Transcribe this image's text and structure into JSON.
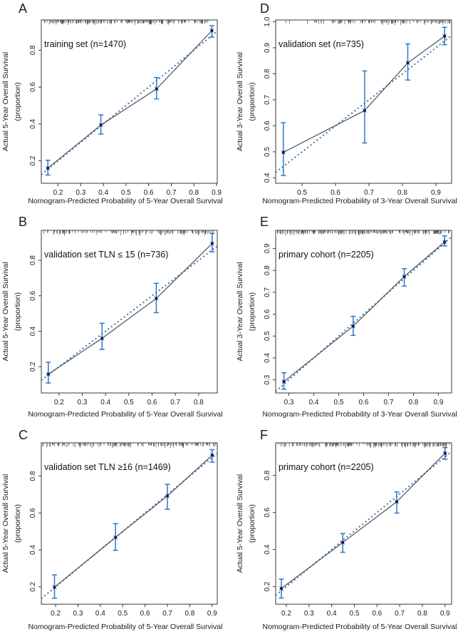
{
  "colors": {
    "frame": "#3a3a3a",
    "rug": "#4a4a4a",
    "tick_text": "#1a1a1a",
    "axis_label_text": "#1a1a1a",
    "annotation_text": "#111111",
    "error_bar": "#3176c5",
    "ideal_line": "#2c6fbf",
    "observed_line": "#4f4f4f",
    "marker_dot": "#16163f",
    "marker_cross": "#6868d8"
  },
  "chart_data": [
    {
      "panel_label": "A",
      "type": "scatter",
      "annotation": "training  set (n=1470)",
      "xlabel": "Nomogram-Predicted Probability of 5-Year Overall Survival",
      "ylabel_line1": "Actual 5-Year  Overall Survival",
      "ylabel_line2": "(proportion)",
      "xlim": [
        0.126,
        0.903
      ],
      "ylim": [
        0.078,
        0.964
      ],
      "xticks": [
        0.2,
        0.3,
        0.4,
        0.5,
        0.6,
        0.7,
        0.8,
        0.9
      ],
      "yticks": [
        0.2,
        0.4,
        0.6,
        0.8
      ],
      "ideal_line": true,
      "legend_position": "none",
      "grid": false,
      "points": [
        {
          "x": 0.155,
          "y": 0.16,
          "lo": 0.123,
          "hi": 0.203
        },
        {
          "x": 0.389,
          "y": 0.394,
          "lo": 0.345,
          "hi": 0.449
        },
        {
          "x": 0.635,
          "y": 0.59,
          "lo": 0.536,
          "hi": 0.652
        },
        {
          "x": 0.879,
          "y": 0.906,
          "lo": 0.871,
          "hi": 0.933
        }
      ],
      "rug": {
        "seed": 101,
        "count": 195,
        "min": 0.13,
        "max": 0.868,
        "skew": 1.0
      },
      "grid_position": {
        "row": 0,
        "col": 0
      }
    },
    {
      "panel_label": "D",
      "type": "scatter",
      "annotation": "validation set (n=735)",
      "xlabel": "Nomogram-Predicted Probability of 3-Year Overall Survival",
      "ylabel_line1": "Actual 3-Year  Overall Survival",
      "ylabel_line2": "(proportion)",
      "xlim": [
        0.421,
        0.947
      ],
      "ylim": [
        0.379,
        1.007
      ],
      "xticks": [
        0.5,
        0.6,
        0.7,
        0.8,
        0.9
      ],
      "yticks": [
        0.4,
        0.5,
        0.6,
        0.7,
        0.8,
        0.9,
        1.0
      ],
      "ideal_line": true,
      "legend_position": "none",
      "grid": false,
      "points": [
        {
          "x": 0.444,
          "y": 0.498,
          "lo": 0.409,
          "hi": 0.612
        },
        {
          "x": 0.687,
          "y": 0.659,
          "lo": 0.534,
          "hi": 0.811
        },
        {
          "x": 0.816,
          "y": 0.842,
          "lo": 0.776,
          "hi": 0.915
        },
        {
          "x": 0.926,
          "y": 0.945,
          "lo": 0.912,
          "hi": 0.979
        }
      ],
      "rug": {
        "seed": 104,
        "count": 105,
        "min": 0.425,
        "max": 0.944,
        "skew": 0.6
      },
      "grid_position": {
        "row": 0,
        "col": 1
      }
    },
    {
      "panel_label": "B",
      "type": "scatter",
      "annotation": "validation  set TLN ≤ 15 (n=736)",
      "xlabel": "Nomogram-Predicted Probability of 5-Year Overall Survival",
      "ylabel_line1": "Actual 5-Year  Overall Survival",
      "ylabel_line2": "(proportion)",
      "xlim": [
        0.124,
        0.88
      ],
      "ylim": [
        0.052,
        0.969
      ],
      "xticks": [
        0.2,
        0.3,
        0.4,
        0.5,
        0.6,
        0.7,
        0.8
      ],
      "yticks": [
        0.2,
        0.4,
        0.6,
        0.8
      ],
      "ideal_line": true,
      "legend_position": "none",
      "grid": false,
      "points": [
        {
          "x": 0.154,
          "y": 0.158,
          "lo": 0.108,
          "hi": 0.225
        },
        {
          "x": 0.385,
          "y": 0.36,
          "lo": 0.298,
          "hi": 0.445
        },
        {
          "x": 0.618,
          "y": 0.585,
          "lo": 0.505,
          "hi": 0.67
        },
        {
          "x": 0.858,
          "y": 0.895,
          "lo": 0.848,
          "hi": 0.952
        }
      ],
      "rug": {
        "seed": 102,
        "count": 125,
        "min": 0.128,
        "max": 0.862,
        "skew": 1.0
      },
      "grid_position": {
        "row": 1,
        "col": 0
      }
    },
    {
      "panel_label": "E",
      "type": "scatter",
      "annotation": "primary cohort (n=2205)",
      "xlabel": "Nomogram-Predicted Probability of 3-Year Overall Survival",
      "ylabel_line1": "Actual 3-Year  Overall Survival",
      "ylabel_line2": "(proportion)",
      "xlim": [
        0.247,
        0.953
      ],
      "ylim": [
        0.24,
        0.983
      ],
      "xticks": [
        0.3,
        0.4,
        0.5,
        0.6,
        0.7,
        0.8,
        0.9
      ],
      "yticks": [
        0.3,
        0.4,
        0.5,
        0.6,
        0.7,
        0.8,
        0.9
      ],
      "ideal_line": true,
      "legend_position": "none",
      "grid": false,
      "points": [
        {
          "x": 0.28,
          "y": 0.292,
          "lo": 0.257,
          "hi": 0.332
        },
        {
          "x": 0.558,
          "y": 0.545,
          "lo": 0.503,
          "hi": 0.59
        },
        {
          "x": 0.763,
          "y": 0.772,
          "lo": 0.728,
          "hi": 0.808
        },
        {
          "x": 0.925,
          "y": 0.93,
          "lo": 0.912,
          "hi": 0.958
        }
      ],
      "rug": {
        "seed": 105,
        "count": 200,
        "min": 0.25,
        "max": 0.948,
        "skew": 1.0
      },
      "grid_position": {
        "row": 1,
        "col": 1
      }
    },
    {
      "panel_label": "C",
      "type": "scatter",
      "annotation": "validation  set TLN ≥16 (n=1469)",
      "xlabel": "Nomogram-Predicted Probability of 5-Year Overall Survival",
      "ylabel_line1": "Actual 5-Year  Overall Survival",
      "ylabel_line2": "(proportion)",
      "xlim": [
        0.136,
        0.923
      ],
      "ylim": [
        0.106,
        0.98
      ],
      "xticks": [
        0.2,
        0.3,
        0.4,
        0.5,
        0.6,
        0.7,
        0.8,
        0.9
      ],
      "yticks": [
        0.2,
        0.4,
        0.6,
        0.8
      ],
      "ideal_line": true,
      "legend_position": "none",
      "grid": false,
      "points": [
        {
          "x": 0.195,
          "y": 0.198,
          "lo": 0.138,
          "hi": 0.265
        },
        {
          "x": 0.468,
          "y": 0.468,
          "lo": 0.398,
          "hi": 0.542
        },
        {
          "x": 0.7,
          "y": 0.692,
          "lo": 0.62,
          "hi": 0.755
        },
        {
          "x": 0.9,
          "y": 0.913,
          "lo": 0.875,
          "hi": 0.943
        }
      ],
      "rug": {
        "seed": 103,
        "count": 150,
        "min": 0.14,
        "max": 0.918,
        "skew": 1.0
      },
      "grid_position": {
        "row": 2,
        "col": 0
      }
    },
    {
      "panel_label": "F",
      "type": "scatter",
      "annotation": "primary cohort (n=2205)",
      "xlabel": "Nomogram-Predicted Probability of 5-Year Overall Survival",
      "ylabel_line1": "Actual 5-Year  Overall Survival",
      "ylabel_line2": "(proportion)",
      "xlim": [
        0.153,
        0.929
      ],
      "ylim": [
        0.105,
        0.976
      ],
      "xticks": [
        0.2,
        0.3,
        0.4,
        0.5,
        0.6,
        0.7,
        0.8,
        0.9
      ],
      "yticks": [
        0.2,
        0.4,
        0.6,
        0.8
      ],
      "ideal_line": true,
      "legend_position": "none",
      "grid": false,
      "points": [
        {
          "x": 0.178,
          "y": 0.19,
          "lo": 0.138,
          "hi": 0.24
        },
        {
          "x": 0.449,
          "y": 0.438,
          "lo": 0.385,
          "hi": 0.486
        },
        {
          "x": 0.687,
          "y": 0.658,
          "lo": 0.597,
          "hi": 0.711
        },
        {
          "x": 0.9,
          "y": 0.92,
          "lo": 0.887,
          "hi": 0.95
        }
      ],
      "rug": {
        "seed": 106,
        "count": 185,
        "min": 0.158,
        "max": 0.924,
        "skew": 1.0
      },
      "grid_position": {
        "row": 2,
        "col": 1
      }
    }
  ]
}
